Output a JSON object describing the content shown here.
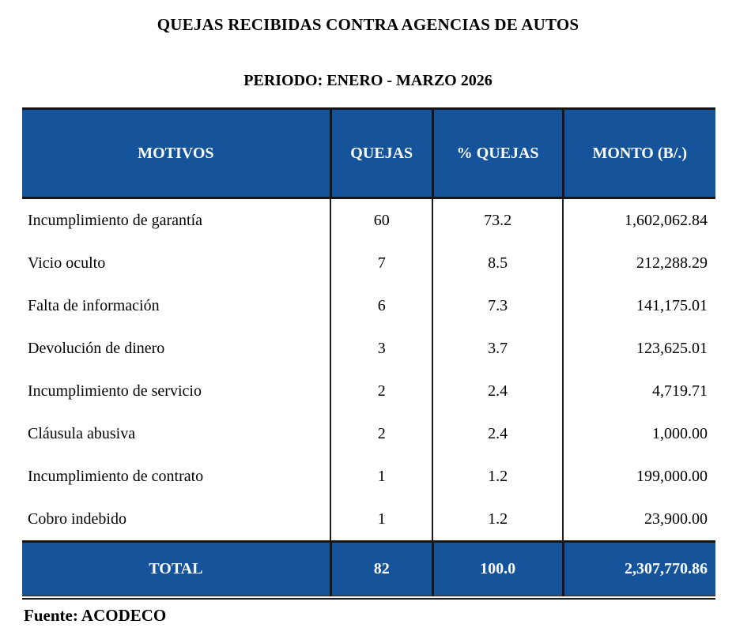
{
  "title": "QUEJAS RECIBIDAS CONTRA AGENCIAS DE AUTOS",
  "subtitle": "PERIODO: ENERO - MARZO 2026",
  "table": {
    "headers": [
      "MOTIVOS",
      "QUEJAS",
      "% QUEJAS",
      "MONTO (B/.)"
    ],
    "rows": [
      {
        "motivo": "Incumplimiento de garantía",
        "quejas": "60",
        "pct": "73.2",
        "monto": "1,602,062.84"
      },
      {
        "motivo": "Vicio oculto",
        "quejas": "7",
        "pct": "8.5",
        "monto": "212,288.29"
      },
      {
        "motivo": "Falta de información",
        "quejas": "6",
        "pct": "7.3",
        "monto": "141,175.01"
      },
      {
        "motivo": "Devolución de dinero",
        "quejas": "3",
        "pct": "3.7",
        "monto": "123,625.01"
      },
      {
        "motivo": "Incumplimiento de servicio",
        "quejas": "2",
        "pct": "2.4",
        "monto": "4,719.71"
      },
      {
        "motivo": "Cláusula abusiva",
        "quejas": "2",
        "pct": "2.4",
        "monto": "1,000.00"
      },
      {
        "motivo": "Incumplimiento de contrato",
        "quejas": "1",
        "pct": "1.2",
        "monto": "199,000.00"
      },
      {
        "motivo": "Cobro indebido",
        "quejas": "1",
        "pct": "1.2",
        "monto": "23,900.00"
      }
    ],
    "total": {
      "label": "TOTAL",
      "quejas": "82",
      "pct": "100.0",
      "monto": "2,307,770.86"
    }
  },
  "source": "Fuente: ACODECO",
  "colors": {
    "header_bg": "#15549a",
    "header_text": "#ffffff",
    "body_text": "#000000",
    "border": "#1c1c1c"
  }
}
